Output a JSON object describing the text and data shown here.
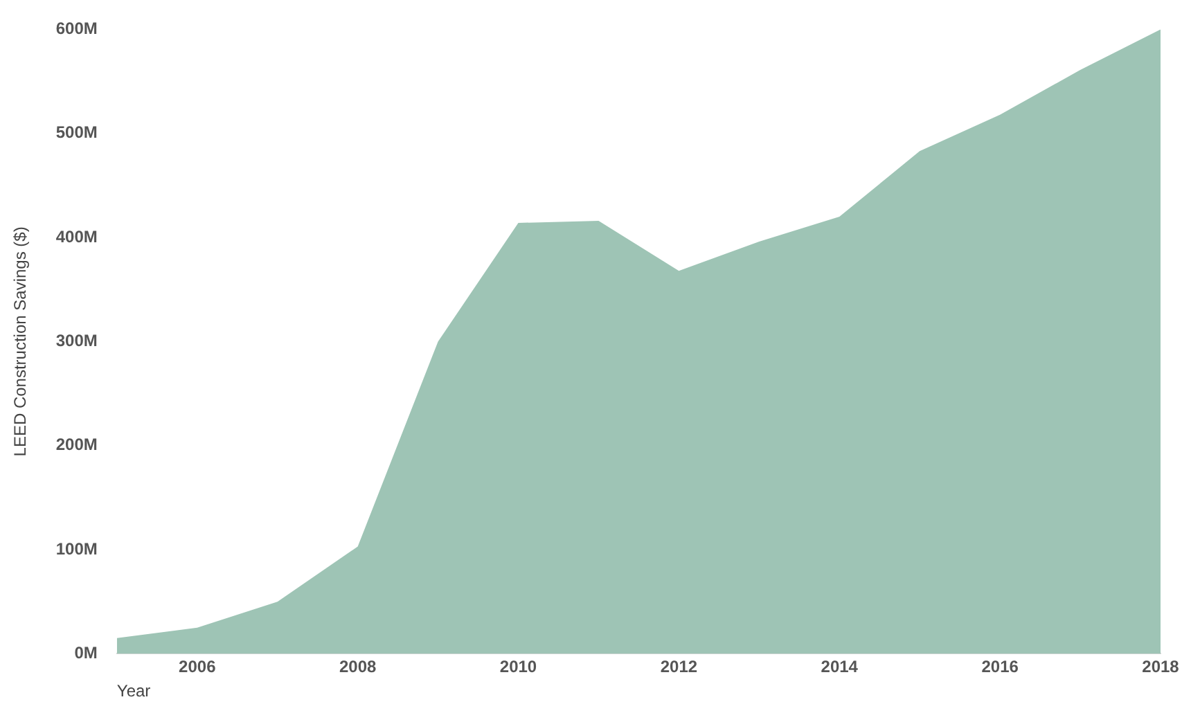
{
  "chart_data": {
    "type": "area",
    "xlabel": "Year",
    "ylabel": "LEED Construction Savings ($)",
    "x": [
      2005,
      2006,
      2007,
      2008,
      2009,
      2010,
      2011,
      2012,
      2013,
      2014,
      2015,
      2016,
      2017,
      2018
    ],
    "series": [
      {
        "color": "#9ec4b5",
        "values": [
          15,
          25,
          50,
          103,
          300,
          414,
          416,
          368,
          396,
          420,
          483,
          518,
          561,
          600
        ]
      }
    ],
    "xlim": [
      2005,
      2018
    ],
    "xticks": [
      2006,
      2008,
      2010,
      2012,
      2014,
      2016,
      2018
    ],
    "ylim": [
      0,
      600
    ],
    "yticks": [
      {
        "value": 0,
        "label": "0M"
      },
      {
        "value": 100,
        "label": "100M"
      },
      {
        "value": 200,
        "label": "200M"
      },
      {
        "value": 300,
        "label": "300M"
      },
      {
        "value": 400,
        "label": "400M"
      },
      {
        "value": 500,
        "label": "500M"
      },
      {
        "value": 600,
        "label": "600M"
      }
    ],
    "grid": false,
    "legend": false
  }
}
